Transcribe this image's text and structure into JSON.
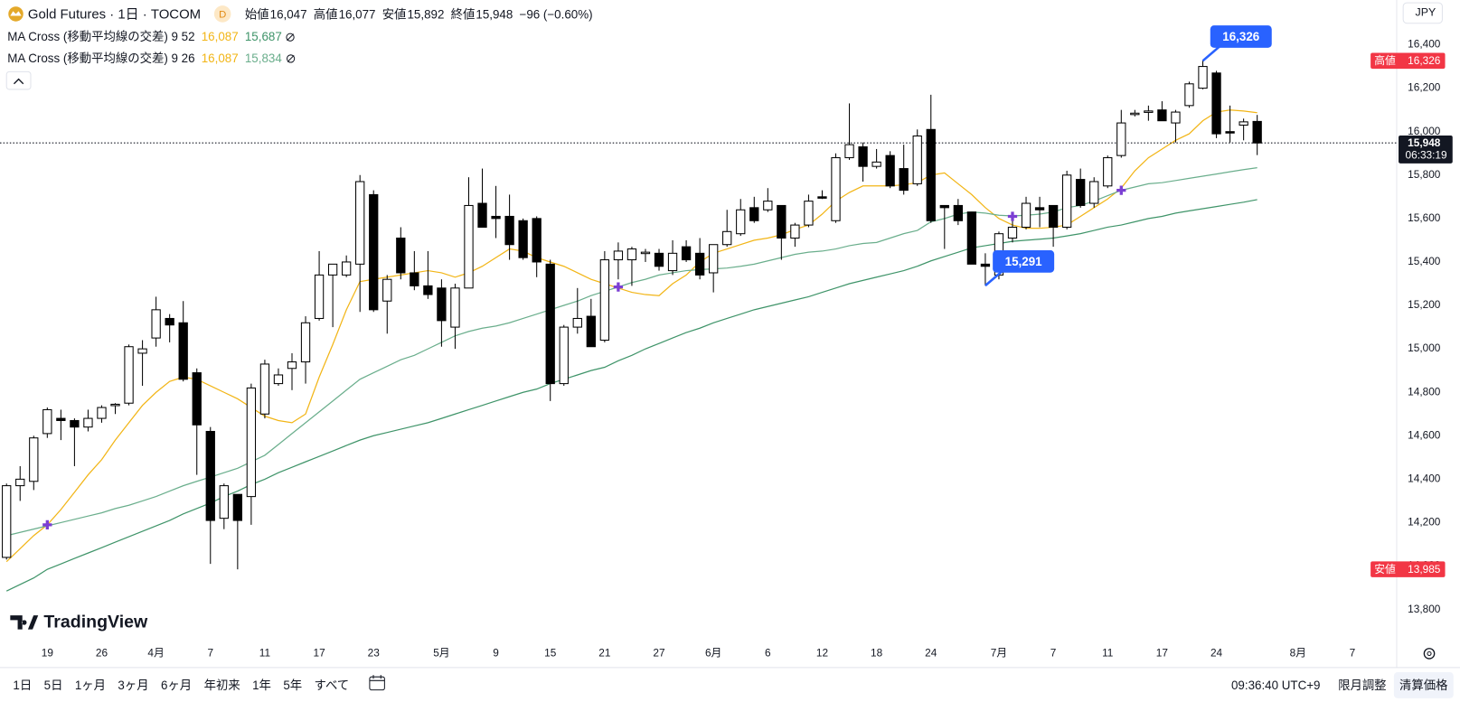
{
  "chart_data": {
    "type": "candlestick",
    "categories": [
      null,
      null,
      null,
      "19",
      null,
      null,
      null,
      "26",
      null,
      null,
      null,
      "4月",
      null,
      null,
      null,
      "7",
      null,
      null,
      null,
      "11",
      null,
      null,
      null,
      "17",
      null,
      null,
      null,
      "23",
      null,
      null,
      null,
      null,
      "5月",
      null,
      null,
      null,
      "9",
      null,
      null,
      null,
      "15",
      null,
      null,
      null,
      "21",
      null,
      null,
      null,
      "27",
      null,
      null,
      null,
      "6月",
      null,
      null,
      null,
      "6",
      null,
      null,
      null,
      "12",
      null,
      null,
      null,
      "18",
      null,
      null,
      null,
      "24",
      null,
      null,
      null,
      null,
      "7月",
      null,
      null,
      null,
      "7",
      null,
      null,
      null,
      "11",
      null,
      null,
      null,
      "17",
      null,
      null,
      null,
      "24",
      null,
      null,
      null,
      null,
      null,
      "8月",
      null,
      null,
      null,
      "7"
    ],
    "open": [
      14040,
      14370,
      14390,
      14610,
      14680,
      14670,
      14640,
      14680,
      14740,
      14750,
      14980,
      15050,
      15140,
      15120,
      14890,
      14620,
      14220,
      14330,
      14320,
      14700,
      14840,
      14910,
      14940,
      15140,
      15340,
      15340,
      15390,
      15710,
      15220,
      15510,
      15350,
      15290,
      15280,
      15100,
      15280,
      15670,
      15610,
      15610,
      15590,
      15600,
      15390,
      14840,
      15100,
      15150,
      15040,
      15410,
      15410,
      15440,
      15440,
      15360,
      15470,
      15440,
      15350,
      15480,
      15530,
      15650,
      15640,
      15660,
      15510,
      15570,
      15700,
      15590,
      15880,
      15930,
      15840,
      15890,
      15830,
      15760,
      16010,
      15660,
      15660,
      15630,
      15390,
      15340,
      15510,
      15560,
      15650,
      15660,
      15560,
      15780,
      15670,
      15750,
      15890,
      16080,
      16090,
      16100,
      16040,
      16120,
      16200,
      16270,
      16000,
      16030,
      16047,
      null,
      null,
      null,
      null,
      null,
      null,
      null
    ],
    "high": [
      14380,
      14460,
      14600,
      14730,
      14720,
      14680,
      14720,
      14740,
      14750,
      15020,
      15040,
      15240,
      15160,
      15220,
      14910,
      14640,
      14380,
      14330,
      14840,
      14950,
      14910,
      14980,
      15150,
      15450,
      15390,
      15430,
      15800,
      15730,
      15340,
      15560,
      15450,
      15450,
      15320,
      15300,
      15790,
      15830,
      15750,
      15710,
      15600,
      15610,
      15410,
      15110,
      15280,
      15230,
      15450,
      15490,
      15470,
      15460,
      15460,
      15500,
      15500,
      15510,
      15480,
      15640,
      15690,
      15700,
      15740,
      15660,
      15580,
      15710,
      15730,
      15900,
      16130,
      15950,
      15920,
      15910,
      15940,
      16010,
      16170,
      15660,
      15690,
      15630,
      15440,
      15540,
      15600,
      15700,
      15700,
      15660,
      15820,
      15830,
      15790,
      15890,
      16100,
      16100,
      16120,
      16140,
      16100,
      16230,
      16326,
      16280,
      16120,
      16060,
      16077,
      null,
      null,
      null,
      null,
      null,
      null,
      null
    ],
    "low": [
      14030,
      14300,
      14350,
      14590,
      14580,
      14460,
      14620,
      14660,
      14700,
      14740,
      14830,
      15010,
      15030,
      14850,
      14420,
      14010,
      14170,
      13985,
      14190,
      14680,
      14830,
      14810,
      14840,
      15130,
      15100,
      15330,
      15170,
      15170,
      15070,
      15320,
      15270,
      15230,
      15010,
      15000,
      15280,
      15560,
      15510,
      15410,
      15410,
      15330,
      14760,
      14830,
      15070,
      15010,
      15030,
      15320,
      15290,
      15400,
      15360,
      15340,
      15400,
      15320,
      15260,
      15470,
      15520,
      15580,
      15630,
      15410,
      15470,
      15560,
      15690,
      15580,
      15870,
      15770,
      15830,
      15740,
      15710,
      15750,
      15580,
      15460,
      15570,
      15390,
      15291,
      15320,
      15490,
      15550,
      15560,
      15470,
      15550,
      15650,
      15650,
      15740,
      15880,
      16070,
      16050,
      16050,
      15950,
      16110,
      16195,
      15970,
      15950,
      15960,
      15892,
      null,
      null,
      null,
      null,
      null,
      null,
      null
    ],
    "close": [
      14370,
      14400,
      14590,
      14720,
      14670,
      14640,
      14680,
      14730,
      14745,
      15010,
      15000,
      15180,
      15110,
      14860,
      14650,
      14210,
      14370,
      14210,
      14820,
      14930,
      14880,
      14940,
      15120,
      15340,
      15390,
      15400,
      15770,
      15180,
      15320,
      15350,
      15290,
      15250,
      15130,
      15280,
      15660,
      15560,
      15600,
      15480,
      15420,
      15400,
      14840,
      15100,
      15140,
      15010,
      15410,
      15450,
      15460,
      15445,
      15380,
      15440,
      15410,
      15340,
      15480,
      15540,
      15640,
      15590,
      15680,
      15510,
      15570,
      15680,
      15695,
      15880,
      15940,
      15840,
      15860,
      15750,
      15730,
      15980,
      15590,
      15650,
      15590,
      15390,
      15380,
      15530,
      15560,
      15670,
      15640,
      15560,
      15800,
      15660,
      15770,
      15880,
      16040,
      16085,
      16095,
      16050,
      16090,
      16220,
      16300,
      15990,
      15995,
      16045,
      15948,
      null,
      null,
      null,
      null,
      null,
      null,
      null
    ],
    "up_color": "#ffffff",
    "down_color": "#000000",
    "wick_color": "#000000",
    "series": [
      {
        "color": "#f2b516",
        "values": [
          14020,
          14080,
          14140,
          14190,
          14260,
          14340,
          14420,
          14490,
          14580,
          14660,
          14740,
          14800,
          14850,
          14870,
          14860,
          14830,
          14800,
          14770,
          14730,
          14690,
          14670,
          14660,
          14700,
          14870,
          15020,
          15180,
          15310,
          15320,
          15330,
          15340,
          15350,
          15360,
          15350,
          15330,
          15350,
          15380,
          15420,
          15460,
          15450,
          15420,
          15400,
          15380,
          15350,
          15320,
          15300,
          15280,
          15260,
          15250,
          15245,
          15300,
          15340,
          15400,
          15440,
          15460,
          15480,
          15500,
          15510,
          15525,
          15550,
          15570,
          15620,
          15680,
          15720,
          15750,
          15750,
          15750,
          15755,
          15765,
          15800,
          15810,
          15760,
          15710,
          15650,
          15600,
          15570,
          15555,
          15555,
          15560,
          15570,
          15610,
          15650,
          15690,
          15740,
          15820,
          15880,
          15920,
          15960,
          15990,
          16050,
          16090,
          16100,
          16095,
          16087,
          null,
          null,
          null,
          null,
          null,
          null,
          null
        ]
      },
      {
        "color": "#6aae8c",
        "values": [
          14140,
          14155,
          14170,
          14185,
          14200,
          14215,
          14230,
          14245,
          14265,
          14280,
          14300,
          14320,
          14345,
          14370,
          14390,
          14410,
          14430,
          14450,
          14480,
          14510,
          14560,
          14610,
          14660,
          14710,
          14760,
          14810,
          14860,
          14890,
          14920,
          14950,
          14970,
          15000,
          15030,
          15060,
          15080,
          15095,
          15105,
          15120,
          15140,
          15160,
          15180,
          15200,
          15220,
          15245,
          15265,
          15285,
          15305,
          15320,
          15340,
          15350,
          15360,
          15365,
          15368,
          15372,
          15380,
          15390,
          15405,
          15420,
          15435,
          15445,
          15450,
          15460,
          15475,
          15485,
          15490,
          15510,
          15530,
          15545,
          15585,
          15600,
          15620,
          15630,
          15625,
          15615,
          15612,
          15615,
          15620,
          15630,
          15650,
          15660,
          15680,
          15705,
          15730,
          15745,
          15760,
          15765,
          15775,
          15785,
          15795,
          15805,
          15815,
          15825,
          15834,
          null,
          null,
          null,
          null,
          null,
          null,
          null
        ]
      },
      {
        "color": "#3f9469",
        "values": [
          13885,
          13915,
          13945,
          13985,
          14010,
          14035,
          14060,
          14085,
          14110,
          14135,
          14160,
          14185,
          14210,
          14240,
          14265,
          14290,
          14320,
          14345,
          14375,
          14400,
          14430,
          14455,
          14480,
          14505,
          14530,
          14555,
          14580,
          14600,
          14615,
          14630,
          14645,
          14660,
          14680,
          14700,
          14720,
          14740,
          14760,
          14780,
          14800,
          14815,
          14840,
          14860,
          14880,
          14900,
          14915,
          14945,
          14970,
          15000,
          15025,
          15050,
          15075,
          15095,
          15120,
          15140,
          15160,
          15180,
          15195,
          15210,
          15225,
          15240,
          15260,
          15280,
          15300,
          15315,
          15330,
          15345,
          15360,
          15380,
          15405,
          15425,
          15445,
          15465,
          15475,
          15485,
          15495,
          15500,
          15505,
          15510,
          15520,
          15530,
          15545,
          15560,
          15570,
          15585,
          15600,
          15610,
          15625,
          15635,
          15645,
          15655,
          15665,
          15675,
          15687,
          null,
          null,
          null,
          null,
          null,
          null,
          null
        ]
      }
    ],
    "cross_markers": {
      "color": "#7b3fd3",
      "values": [
        null,
        null,
        null,
        14190,
        null,
        null,
        null,
        null,
        null,
        null,
        null,
        null,
        null,
        null,
        null,
        null,
        null,
        null,
        null,
        null,
        null,
        null,
        null,
        null,
        null,
        null,
        null,
        null,
        null,
        null,
        null,
        null,
        null,
        null,
        null,
        null,
        null,
        null,
        null,
        null,
        null,
        null,
        null,
        null,
        null,
        15285,
        null,
        null,
        null,
        null,
        null,
        null,
        null,
        null,
        null,
        null,
        null,
        null,
        null,
        null,
        null,
        null,
        null,
        null,
        null,
        null,
        null,
        null,
        null,
        null,
        null,
        null,
        null,
        null,
        15610,
        null,
        null,
        null,
        null,
        null,
        null,
        null,
        15730,
        null,
        null,
        null,
        null,
        null,
        null,
        null,
        null,
        null,
        null,
        null,
        null,
        null,
        null,
        null,
        null,
        null
      ]
    },
    "ylim": [
      13670,
      16606
    ],
    "yticks": [
      {
        "value": 13800,
        "label": "13,800"
      },
      {
        "value": 14000,
        "label": "14,000"
      },
      {
        "value": 14200,
        "label": "14,200"
      },
      {
        "value": 14400,
        "label": "14,400"
      },
      {
        "value": 14600,
        "label": "14,600"
      },
      {
        "value": 14800,
        "label": "14,800"
      },
      {
        "value": 15000,
        "label": "15,000"
      },
      {
        "value": 15200,
        "label": "15,200"
      },
      {
        "value": 15400,
        "label": "15,400"
      },
      {
        "value": 15600,
        "label": "15,600"
      },
      {
        "value": 15800,
        "label": "15,800"
      },
      {
        "value": 16000,
        "label": "16,000"
      },
      {
        "value": 16200,
        "label": "16,200"
      },
      {
        "value": 16400,
        "label": "16,400"
      }
    ],
    "grid": false,
    "high_label": {
      "name": "高値",
      "label": "16,326",
      "value": 16326,
      "color": "#f23645"
    },
    "low_label": {
      "name": "安値",
      "label": "13,985",
      "value": 13985,
      "color": "#f23645"
    },
    "last_price": {
      "label": "15,948",
      "value": 15948,
      "countdown": "06:33:19",
      "color": "#131722"
    },
    "high_callout": {
      "label": "16,326",
      "value": 16326,
      "color": "#2962ff"
    },
    "low_callout": {
      "label": "15,291",
      "value": 15291,
      "color": "#2962ff"
    }
  },
  "ui": {
    "header": {
      "symbol": "Gold Futures · 1日 · TOCOM",
      "badge": "D",
      "ohlc": [
        {
          "name": "始値",
          "value": "16,047"
        },
        {
          "name": "高値",
          "value": "16,077"
        },
        {
          "name": "安値",
          "value": "15,892"
        },
        {
          "name": "終値",
          "value": "15,948"
        }
      ],
      "change": "−96 (−0.60%)"
    },
    "indicators": [
      {
        "name": "MA Cross (移動平均線の交差) 9 52",
        "values": [
          "16,087",
          "15,687"
        ],
        "colors": [
          "#f2b516",
          "#3f9469"
        ]
      },
      {
        "name": "MA Cross (移動平均線の交差) 9 26",
        "values": [
          "16,087",
          "15,834"
        ],
        "colors": [
          "#f2b516",
          "#6aae8c"
        ]
      }
    ],
    "currency": "JPY",
    "brand": "TradingView",
    "toolbar": {
      "ranges": [
        "1日",
        "5日",
        "1ヶ月",
        "3ヶ月",
        "6ヶ月",
        "年初来",
        "1年",
        "5年",
        "すべて"
      ],
      "time": "09:36:40 UTC+9",
      "buttons": [
        "限月調整",
        "清算価格"
      ]
    }
  }
}
